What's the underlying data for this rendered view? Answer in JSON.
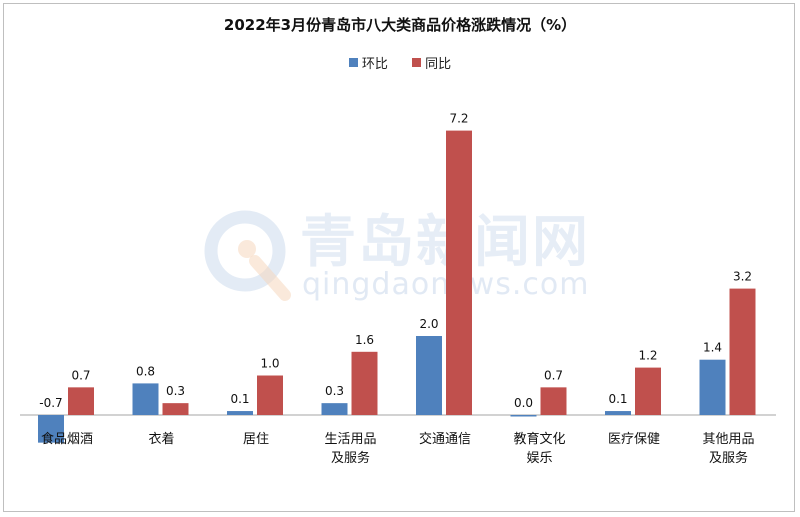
{
  "chart_data": {
    "type": "bar",
    "title": "2022年3月份青岛市八大类商品价格涨跌情况（%）",
    "categories": [
      "食品烟酒",
      "衣着",
      "居住",
      "生活用品及服务",
      "交通通信",
      "教育文化娱乐",
      "医疗保健",
      "其他用品及服务"
    ],
    "category_lines": [
      [
        "食品烟酒"
      ],
      [
        "衣着"
      ],
      [
        "居住"
      ],
      [
        "生活用品",
        "及服务"
      ],
      [
        "交通通信"
      ],
      [
        "教育文化",
        "娱乐"
      ],
      [
        "医疗保健"
      ],
      [
        "其他用品",
        "及服务"
      ]
    ],
    "series": [
      {
        "name": "环比",
        "color": "#4f81bd",
        "values": [
          -0.7,
          0.8,
          0.1,
          0.3,
          2.0,
          0.0,
          0.1,
          1.4
        ],
        "labels": [
          "-0.7",
          "0.8",
          "0.1",
          "0.3",
          "2.0",
          "0.0",
          "0.1",
          "1.4"
        ]
      },
      {
        "name": "同比",
        "color": "#c0504d",
        "values": [
          0.7,
          0.3,
          1.0,
          1.6,
          7.2,
          0.7,
          1.2,
          3.2
        ],
        "labels": [
          "0.7",
          "0.3",
          "1.0",
          "1.6",
          "7.2",
          "0.7",
          "1.2",
          "3.2"
        ]
      }
    ],
    "ylim": [
      -0.8,
      7.8
    ],
    "grid": false,
    "legend": "top"
  },
  "watermark": {
    "name": "青岛新闻网",
    "url": "qingdaonews.com"
  }
}
